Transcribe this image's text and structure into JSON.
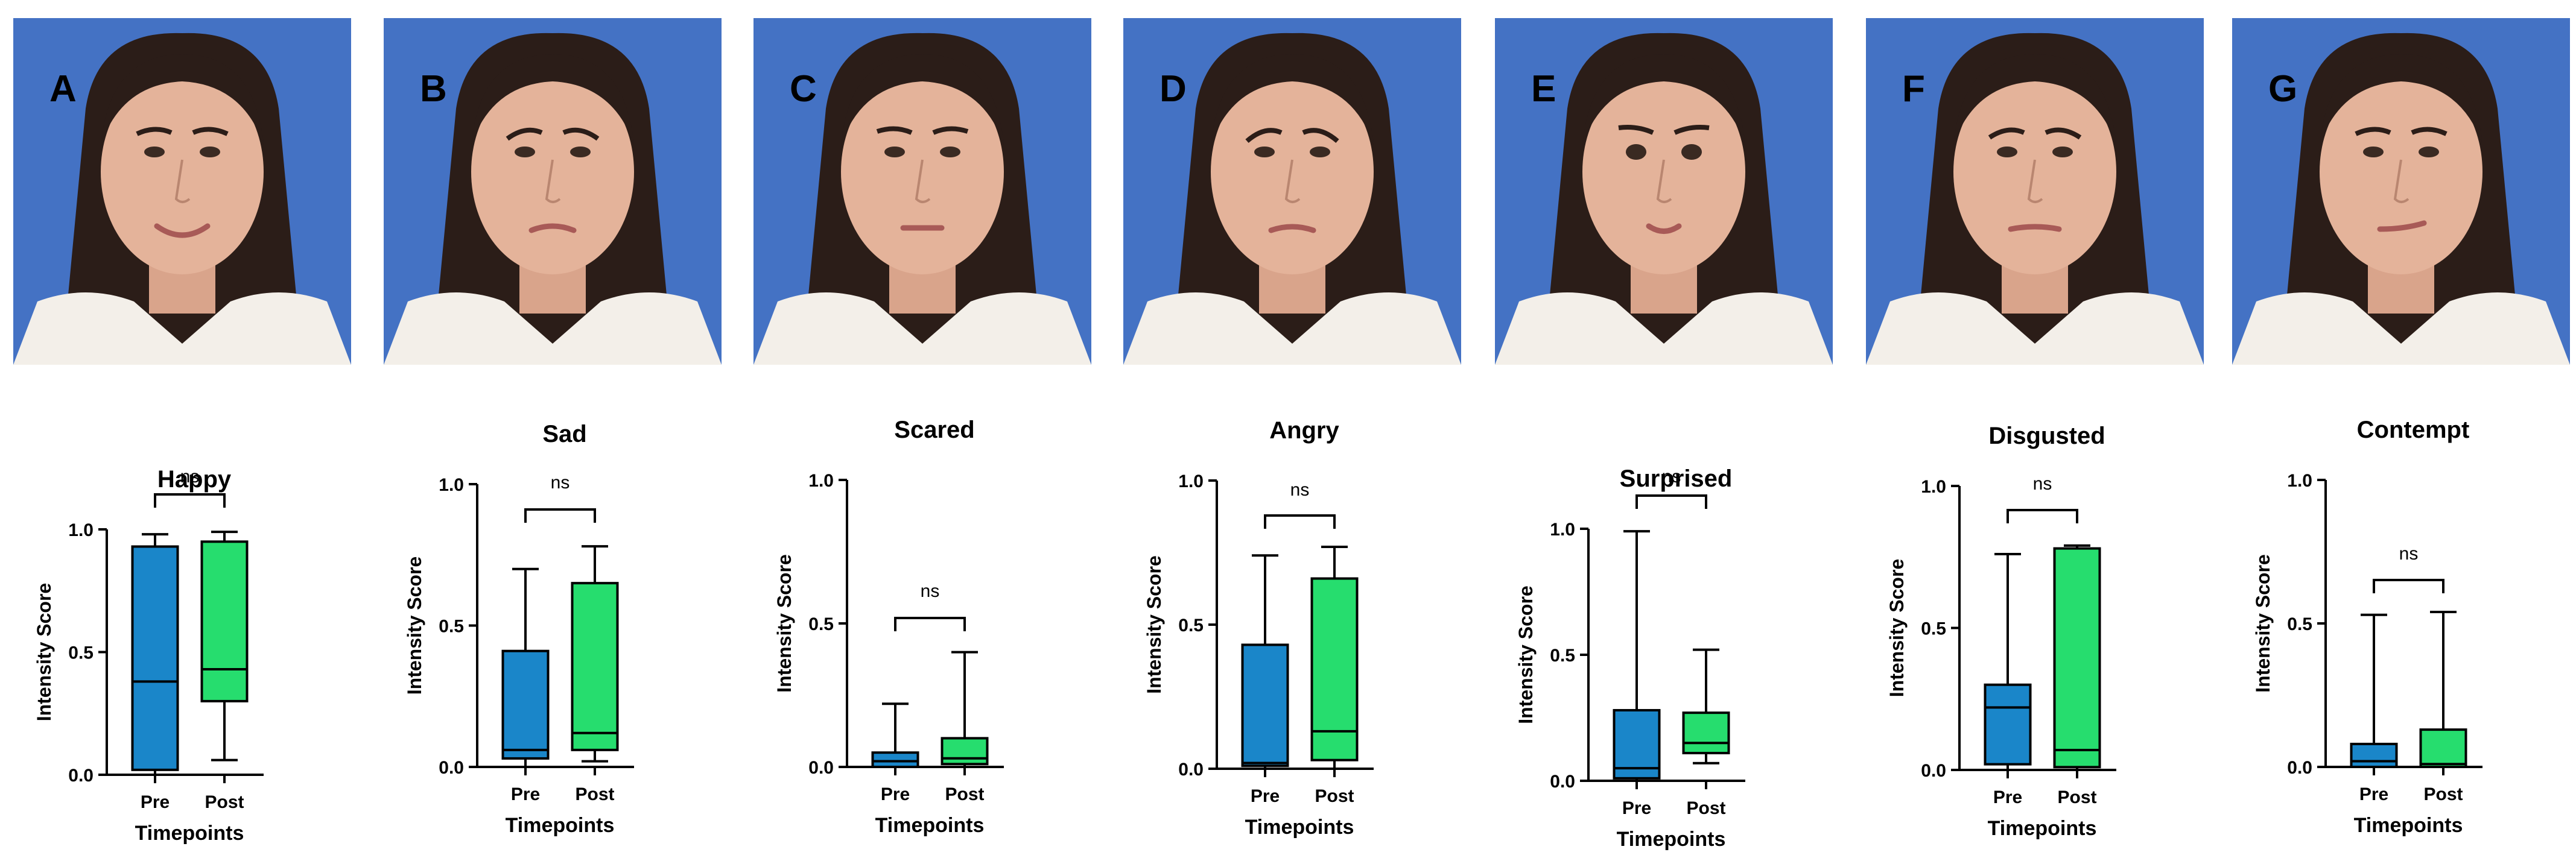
{
  "panels": [
    {
      "letter": "A",
      "chart_data": {
        "type": "box",
        "title": "Happy",
        "ylabel": "Intensity Score",
        "xlabel": "Timepoints",
        "categories": [
          "Pre",
          "Post"
        ],
        "ylim": [
          0,
          1.0
        ],
        "yticks": [
          "0.0",
          "0.5",
          "1.0"
        ],
        "boxes": [
          {
            "category": "Pre",
            "min": 0.0,
            "q1": 0.02,
            "median": 0.38,
            "q3": 0.93,
            "max": 0.98
          },
          {
            "category": "Post",
            "min": 0.06,
            "q1": 0.3,
            "median": 0.43,
            "q3": 0.95,
            "max": 0.99
          }
        ],
        "significance": "ns"
      }
    },
    {
      "letter": "B",
      "chart_data": {
        "type": "box",
        "title": "Sad",
        "ylabel": "Intensity Score",
        "xlabel": "Timepoints",
        "categories": [
          "Pre",
          "Post"
        ],
        "ylim": [
          0,
          1.0
        ],
        "yticks": [
          "0.0",
          "0.5",
          "1.0"
        ],
        "boxes": [
          {
            "category": "Pre",
            "min": 0.0,
            "q1": 0.03,
            "median": 0.06,
            "q3": 0.41,
            "max": 0.7
          },
          {
            "category": "Post",
            "min": 0.02,
            "q1": 0.06,
            "median": 0.12,
            "q3": 0.65,
            "max": 0.78
          }
        ],
        "significance": "ns"
      }
    },
    {
      "letter": "C",
      "chart_data": {
        "type": "box",
        "title": "Scared",
        "ylabel": "Intensity Score",
        "xlabel": "Timepoints",
        "categories": [
          "Pre",
          "Post"
        ],
        "ylim": [
          0,
          1.0
        ],
        "yticks": [
          "0.0",
          "0.5",
          "1.0"
        ],
        "boxes": [
          {
            "category": "Pre",
            "min": 0.0,
            "q1": 0.0,
            "median": 0.02,
            "q3": 0.05,
            "max": 0.22
          },
          {
            "category": "Post",
            "min": 0.0,
            "q1": 0.01,
            "median": 0.03,
            "q3": 0.1,
            "max": 0.4
          }
        ],
        "significance": "ns"
      }
    },
    {
      "letter": "D",
      "chart_data": {
        "type": "box",
        "title": "Angry",
        "ylabel": "Intensity Score",
        "xlabel": "Timepoints",
        "categories": [
          "Pre",
          "Post"
        ],
        "ylim": [
          0,
          1.0
        ],
        "yticks": [
          "0.0",
          "0.5",
          "1.0"
        ],
        "boxes": [
          {
            "category": "Pre",
            "min": 0.0,
            "q1": 0.01,
            "median": 0.02,
            "q3": 0.43,
            "max": 0.74
          },
          {
            "category": "Post",
            "min": 0.0,
            "q1": 0.03,
            "median": 0.13,
            "q3": 0.66,
            "max": 0.77
          }
        ],
        "significance": "ns"
      }
    },
    {
      "letter": "E",
      "chart_data": {
        "type": "box",
        "title": "Surprised",
        "ylabel": "Intensity Score",
        "xlabel": "Timepoints",
        "categories": [
          "Pre",
          "Post"
        ],
        "ylim": [
          0,
          1.0
        ],
        "yticks": [
          "0.0",
          "0.5",
          "1.0"
        ],
        "boxes": [
          {
            "category": "Pre",
            "min": 0.0,
            "q1": 0.01,
            "median": 0.05,
            "q3": 0.28,
            "max": 0.99
          },
          {
            "category": "Post",
            "min": 0.07,
            "q1": 0.11,
            "median": 0.15,
            "q3": 0.27,
            "max": 0.52
          }
        ],
        "significance": "ns"
      }
    },
    {
      "letter": "F",
      "chart_data": {
        "type": "box",
        "title": "Disgusted",
        "ylabel": "Intensity Score",
        "xlabel": "Timepoints",
        "categories": [
          "Pre",
          "Post"
        ],
        "ylim": [
          0,
          1.0
        ],
        "yticks": [
          "0.0",
          "0.5",
          "1.0"
        ],
        "boxes": [
          {
            "category": "Pre",
            "min": 0.0,
            "q1": 0.02,
            "median": 0.22,
            "q3": 0.3,
            "max": 0.76
          },
          {
            "category": "Post",
            "min": 0.0,
            "q1": 0.01,
            "median": 0.07,
            "q3": 0.78,
            "max": 0.79
          }
        ],
        "significance": "ns"
      }
    },
    {
      "letter": "G",
      "chart_data": {
        "type": "box",
        "title": "Contempt",
        "ylabel": "Intensity Score",
        "xlabel": "Timepoints",
        "categories": [
          "Pre",
          "Post"
        ],
        "ylim": [
          0,
          1.0
        ],
        "yticks": [
          "0.0",
          "0.5",
          "1.0"
        ],
        "boxes": [
          {
            "category": "Pre",
            "min": 0.0,
            "q1": 0.0,
            "median": 0.02,
            "q3": 0.08,
            "max": 0.53
          },
          {
            "category": "Post",
            "min": 0.0,
            "q1": 0.0,
            "median": 0.01,
            "q3": 0.13,
            "max": 0.54
          }
        ],
        "significance": "ns"
      }
    }
  ],
  "colors": {
    "pre_fill": "#1a86c9",
    "post_fill": "#26dd6e",
    "photo_background": "#4472c4",
    "axis": "#000000"
  }
}
